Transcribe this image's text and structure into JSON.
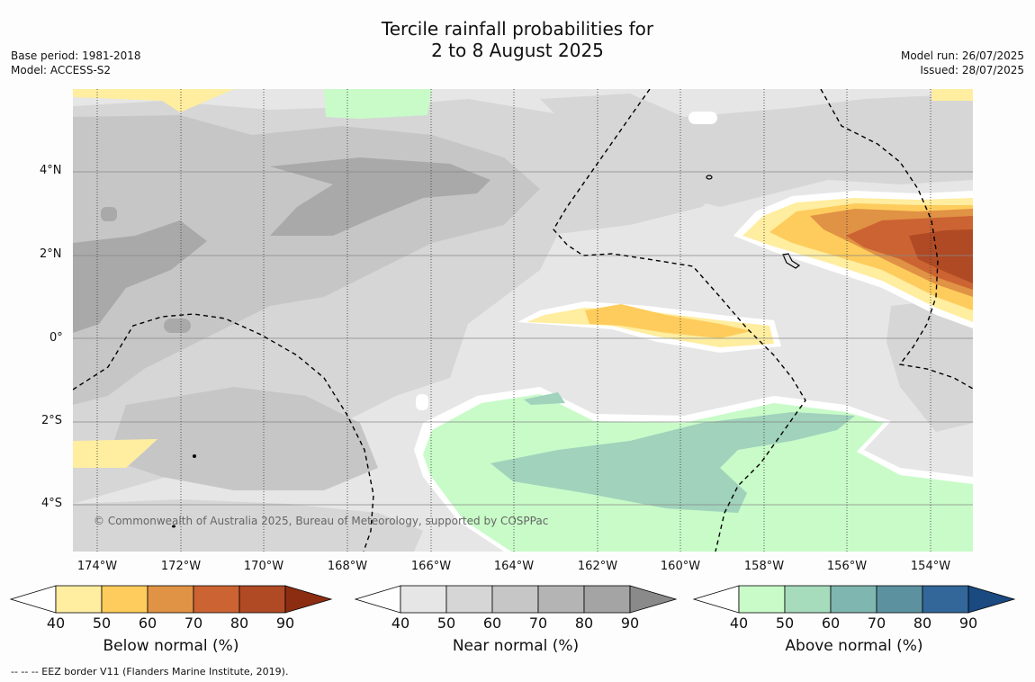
{
  "title": {
    "line1": "Tercile rainfall probabilities for",
    "line2": "2 to 8 August 2025"
  },
  "meta_left": {
    "base_period": "Base period: 1981-2018",
    "model": "Model: ACCESS-S2"
  },
  "meta_right": {
    "model_run": "Model run: 26/07/2025",
    "issued": "Issued: 28/07/2025"
  },
  "map": {
    "lat_labels": [
      "4°N",
      "2°N",
      "0°",
      "2°S",
      "4°S"
    ],
    "lon_labels": [
      "174°W",
      "172°W",
      "170°W",
      "168°W",
      "166°W",
      "164°W",
      "162°W",
      "160°W",
      "158°W",
      "156°W",
      "154°W"
    ],
    "copyright": "© Commonwealth of Australia 2025, Bureau of Meteorology, supported by COSPPac"
  },
  "colorbars": [
    {
      "title": "Below normal (%)",
      "ticks": [
        "40",
        "50",
        "60",
        "70",
        "80",
        "90"
      ],
      "colors": [
        "#ffeda0",
        "#fecc5c",
        "#e09245",
        "#cc6332",
        "#b04a24"
      ],
      "over_color": "#8c2d12"
    },
    {
      "title": "Near normal (%)",
      "ticks": [
        "40",
        "50",
        "60",
        "70",
        "80",
        "90"
      ],
      "colors": [
        "#e6e6e6",
        "#d6d6d6",
        "#c6c6c6",
        "#b4b4b4",
        "#a4a4a4"
      ],
      "over_color": "#8a8a8a"
    },
    {
      "title": "Above normal (%)",
      "ticks": [
        "40",
        "50",
        "60",
        "70",
        "80",
        "90"
      ],
      "colors": [
        "#c8fbc8",
        "#a6dcbc",
        "#80b6b0",
        "#5c92a0",
        "#336699"
      ],
      "over_color": "#1a4a80"
    }
  ],
  "footnote": "--  --  -- EEZ border V11 (Flanders Marine Institute, 2019)."
}
